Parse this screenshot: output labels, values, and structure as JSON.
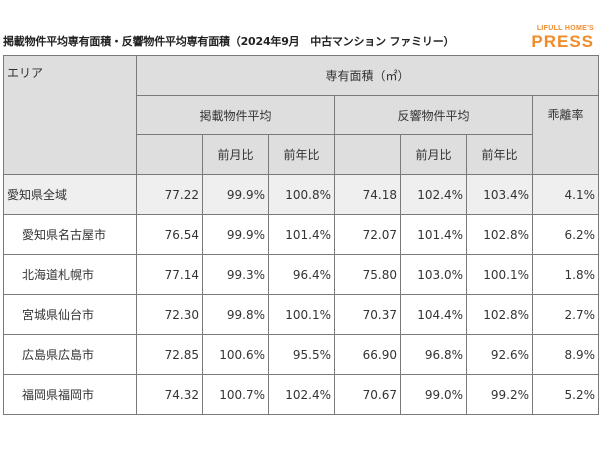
{
  "header": {
    "title": "掲載物件平均専有面積・反響物件平均専有面積（2024年9月　中古マンション ファミリー）",
    "brand_top": "LIFULL HOME'S",
    "brand_bottom": "PRESS",
    "brand_color": "#f08c2a"
  },
  "table": {
    "area_header": "エリア",
    "group_header": "専有面積（㎡）",
    "listed_header": "掲載物件平均",
    "response_header": "反響物件平均",
    "divergence_header": "乖離率",
    "mom_header": "前月比",
    "yoy_header": "前年比",
    "rows": [
      {
        "area": "愛知県全域",
        "listed_avg": "77.22",
        "listed_mom": "99.9%",
        "listed_yoy": "100.8%",
        "resp_avg": "74.18",
        "resp_mom": "102.4%",
        "resp_yoy": "103.4%",
        "divergence": "4.1%"
      },
      {
        "area": "愛知県名古屋市",
        "listed_avg": "76.54",
        "listed_mom": "99.9%",
        "listed_yoy": "101.4%",
        "resp_avg": "72.07",
        "resp_mom": "101.4%",
        "resp_yoy": "102.8%",
        "divergence": "6.2%"
      },
      {
        "area": "北海道札幌市",
        "listed_avg": "77.14",
        "listed_mom": "99.3%",
        "listed_yoy": "96.4%",
        "resp_avg": "75.80",
        "resp_mom": "103.0%",
        "resp_yoy": "100.1%",
        "divergence": "1.8%"
      },
      {
        "area": "宮城県仙台市",
        "listed_avg": "72.30",
        "listed_mom": "99.8%",
        "listed_yoy": "100.1%",
        "resp_avg": "70.37",
        "resp_mom": "104.4%",
        "resp_yoy": "102.8%",
        "divergence": "2.7%"
      },
      {
        "area": "広島県広島市",
        "listed_avg": "72.85",
        "listed_mom": "100.6%",
        "listed_yoy": "95.5%",
        "resp_avg": "66.90",
        "resp_mom": "96.8%",
        "resp_yoy": "92.6%",
        "divergence": "8.9%"
      },
      {
        "area": "福岡県福岡市",
        "listed_avg": "74.32",
        "listed_mom": "100.7%",
        "listed_yoy": "102.4%",
        "resp_avg": "70.67",
        "resp_mom": "99.0%",
        "resp_yoy": "99.2%",
        "divergence": "5.2%"
      }
    ]
  }
}
